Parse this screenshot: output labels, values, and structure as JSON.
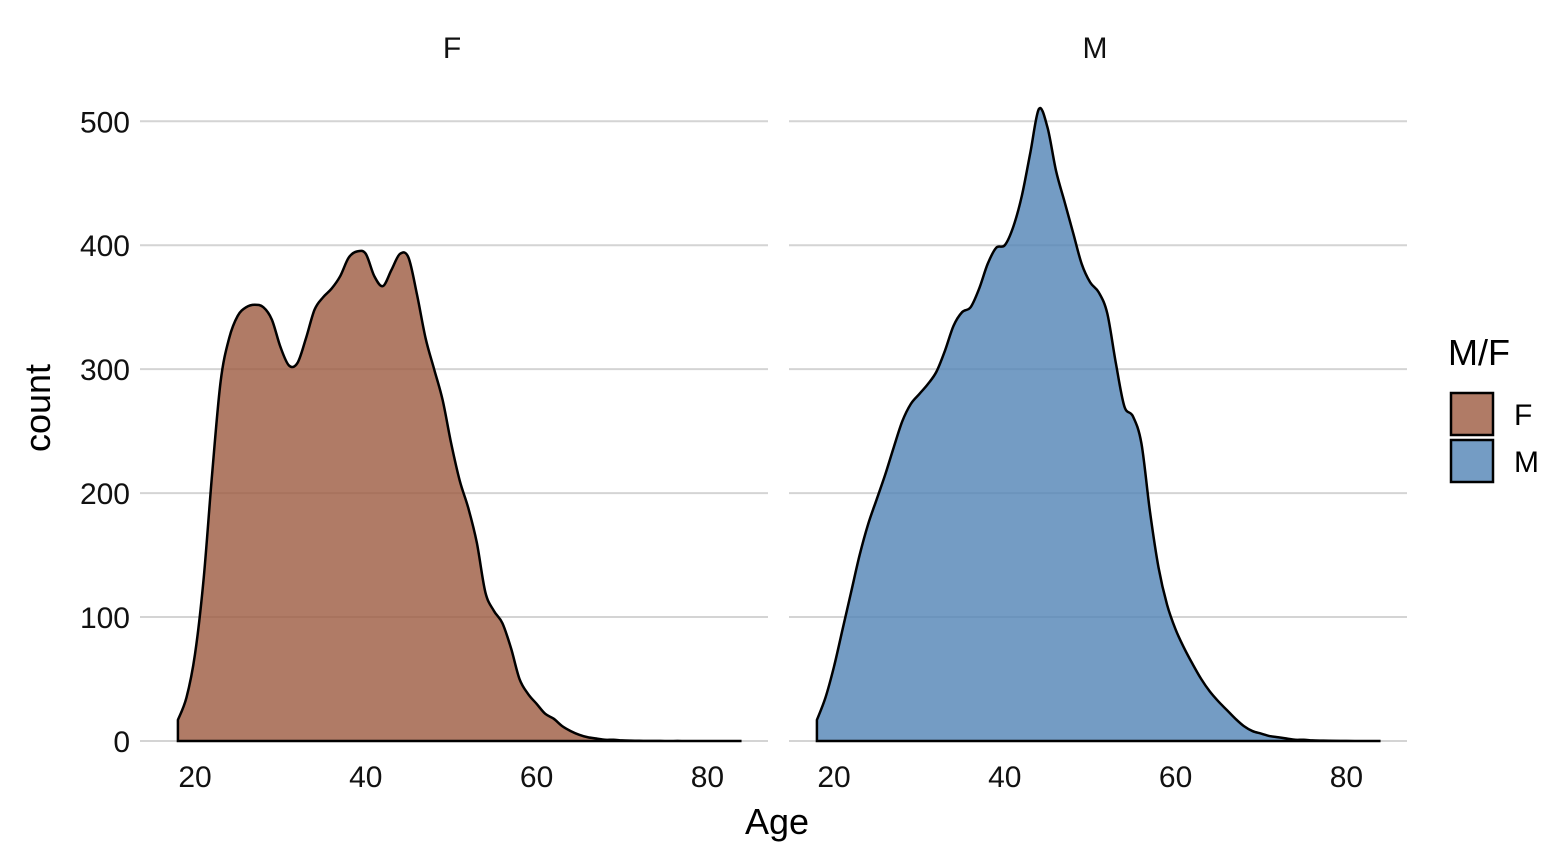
{
  "chart_data": {
    "type": "area",
    "kind": "faceted density",
    "xlabel": "Age",
    "ylabel": "count",
    "xlim": [
      14,
      86
    ],
    "ylim": [
      0,
      525
    ],
    "x_ticks": [
      20,
      40,
      60,
      80
    ],
    "y_ticks": [
      0,
      100,
      200,
      300,
      400,
      500
    ],
    "grid": "horizontal",
    "legend": {
      "title": "M/F",
      "position": "right",
      "entries": [
        {
          "label": "F",
          "color": "#9c5a40"
        },
        {
          "label": "M",
          "color": "#5183b5"
        }
      ]
    },
    "facets": [
      {
        "label": "F",
        "color": "#9c5a40",
        "x": [
          18,
          19,
          20,
          21,
          22,
          23,
          24,
          25,
          26,
          27,
          28,
          29,
          30,
          31,
          32,
          33,
          34,
          35,
          36,
          37,
          38,
          39,
          40,
          41,
          42,
          43,
          44,
          45,
          46,
          47,
          48,
          49,
          50,
          51,
          52,
          53,
          54,
          55,
          56,
          57,
          58,
          59,
          60,
          61,
          62,
          63,
          64,
          65,
          66,
          67,
          68,
          69,
          70,
          71,
          72,
          73,
          74,
          75,
          76,
          77,
          78,
          80,
          82,
          84
        ],
        "y": [
          17,
          35,
          70,
          130,
          215,
          290,
          325,
          343,
          350,
          352,
          350,
          340,
          318,
          303,
          305,
          325,
          348,
          358,
          365,
          375,
          390,
          395,
          393,
          375,
          367,
          380,
          393,
          390,
          360,
          325,
          300,
          275,
          240,
          210,
          188,
          160,
          120,
          105,
          95,
          75,
          50,
          38,
          30,
          22,
          18,
          12,
          8,
          5,
          3,
          2,
          1,
          1,
          0.5,
          0.3,
          0.2,
          0.1,
          0.1,
          0.05,
          0.05,
          0.05,
          0,
          0,
          0,
          0
        ]
      },
      {
        "label": "M",
        "color": "#5183b5",
        "x": [
          18,
          19,
          20,
          21,
          22,
          23,
          24,
          25,
          26,
          27,
          28,
          29,
          30,
          31,
          32,
          33,
          34,
          35,
          36,
          37,
          38,
          39,
          40,
          41,
          42,
          43,
          44,
          45,
          46,
          47,
          48,
          49,
          50,
          51,
          52,
          53,
          54,
          55,
          56,
          57,
          58,
          59,
          60,
          61,
          62,
          63,
          64,
          65,
          66,
          67,
          68,
          69,
          70,
          71,
          72,
          73,
          74,
          75,
          76,
          77,
          78,
          80,
          82,
          84
        ],
        "y": [
          17,
          35,
          60,
          90,
          120,
          150,
          175,
          195,
          215,
          237,
          258,
          272,
          280,
          288,
          298,
          315,
          335,
          346,
          350,
          365,
          385,
          398,
          400,
          415,
          440,
          475,
          510,
          495,
          460,
          435,
          410,
          385,
          370,
          362,
          345,
          305,
          270,
          262,
          240,
          185,
          140,
          110,
          90,
          75,
          62,
          50,
          40,
          32,
          25,
          18,
          12,
          8,
          6,
          4,
          3,
          2,
          1,
          1,
          0.5,
          0.3,
          0.2,
          0.1,
          0,
          0
        ]
      }
    ]
  }
}
